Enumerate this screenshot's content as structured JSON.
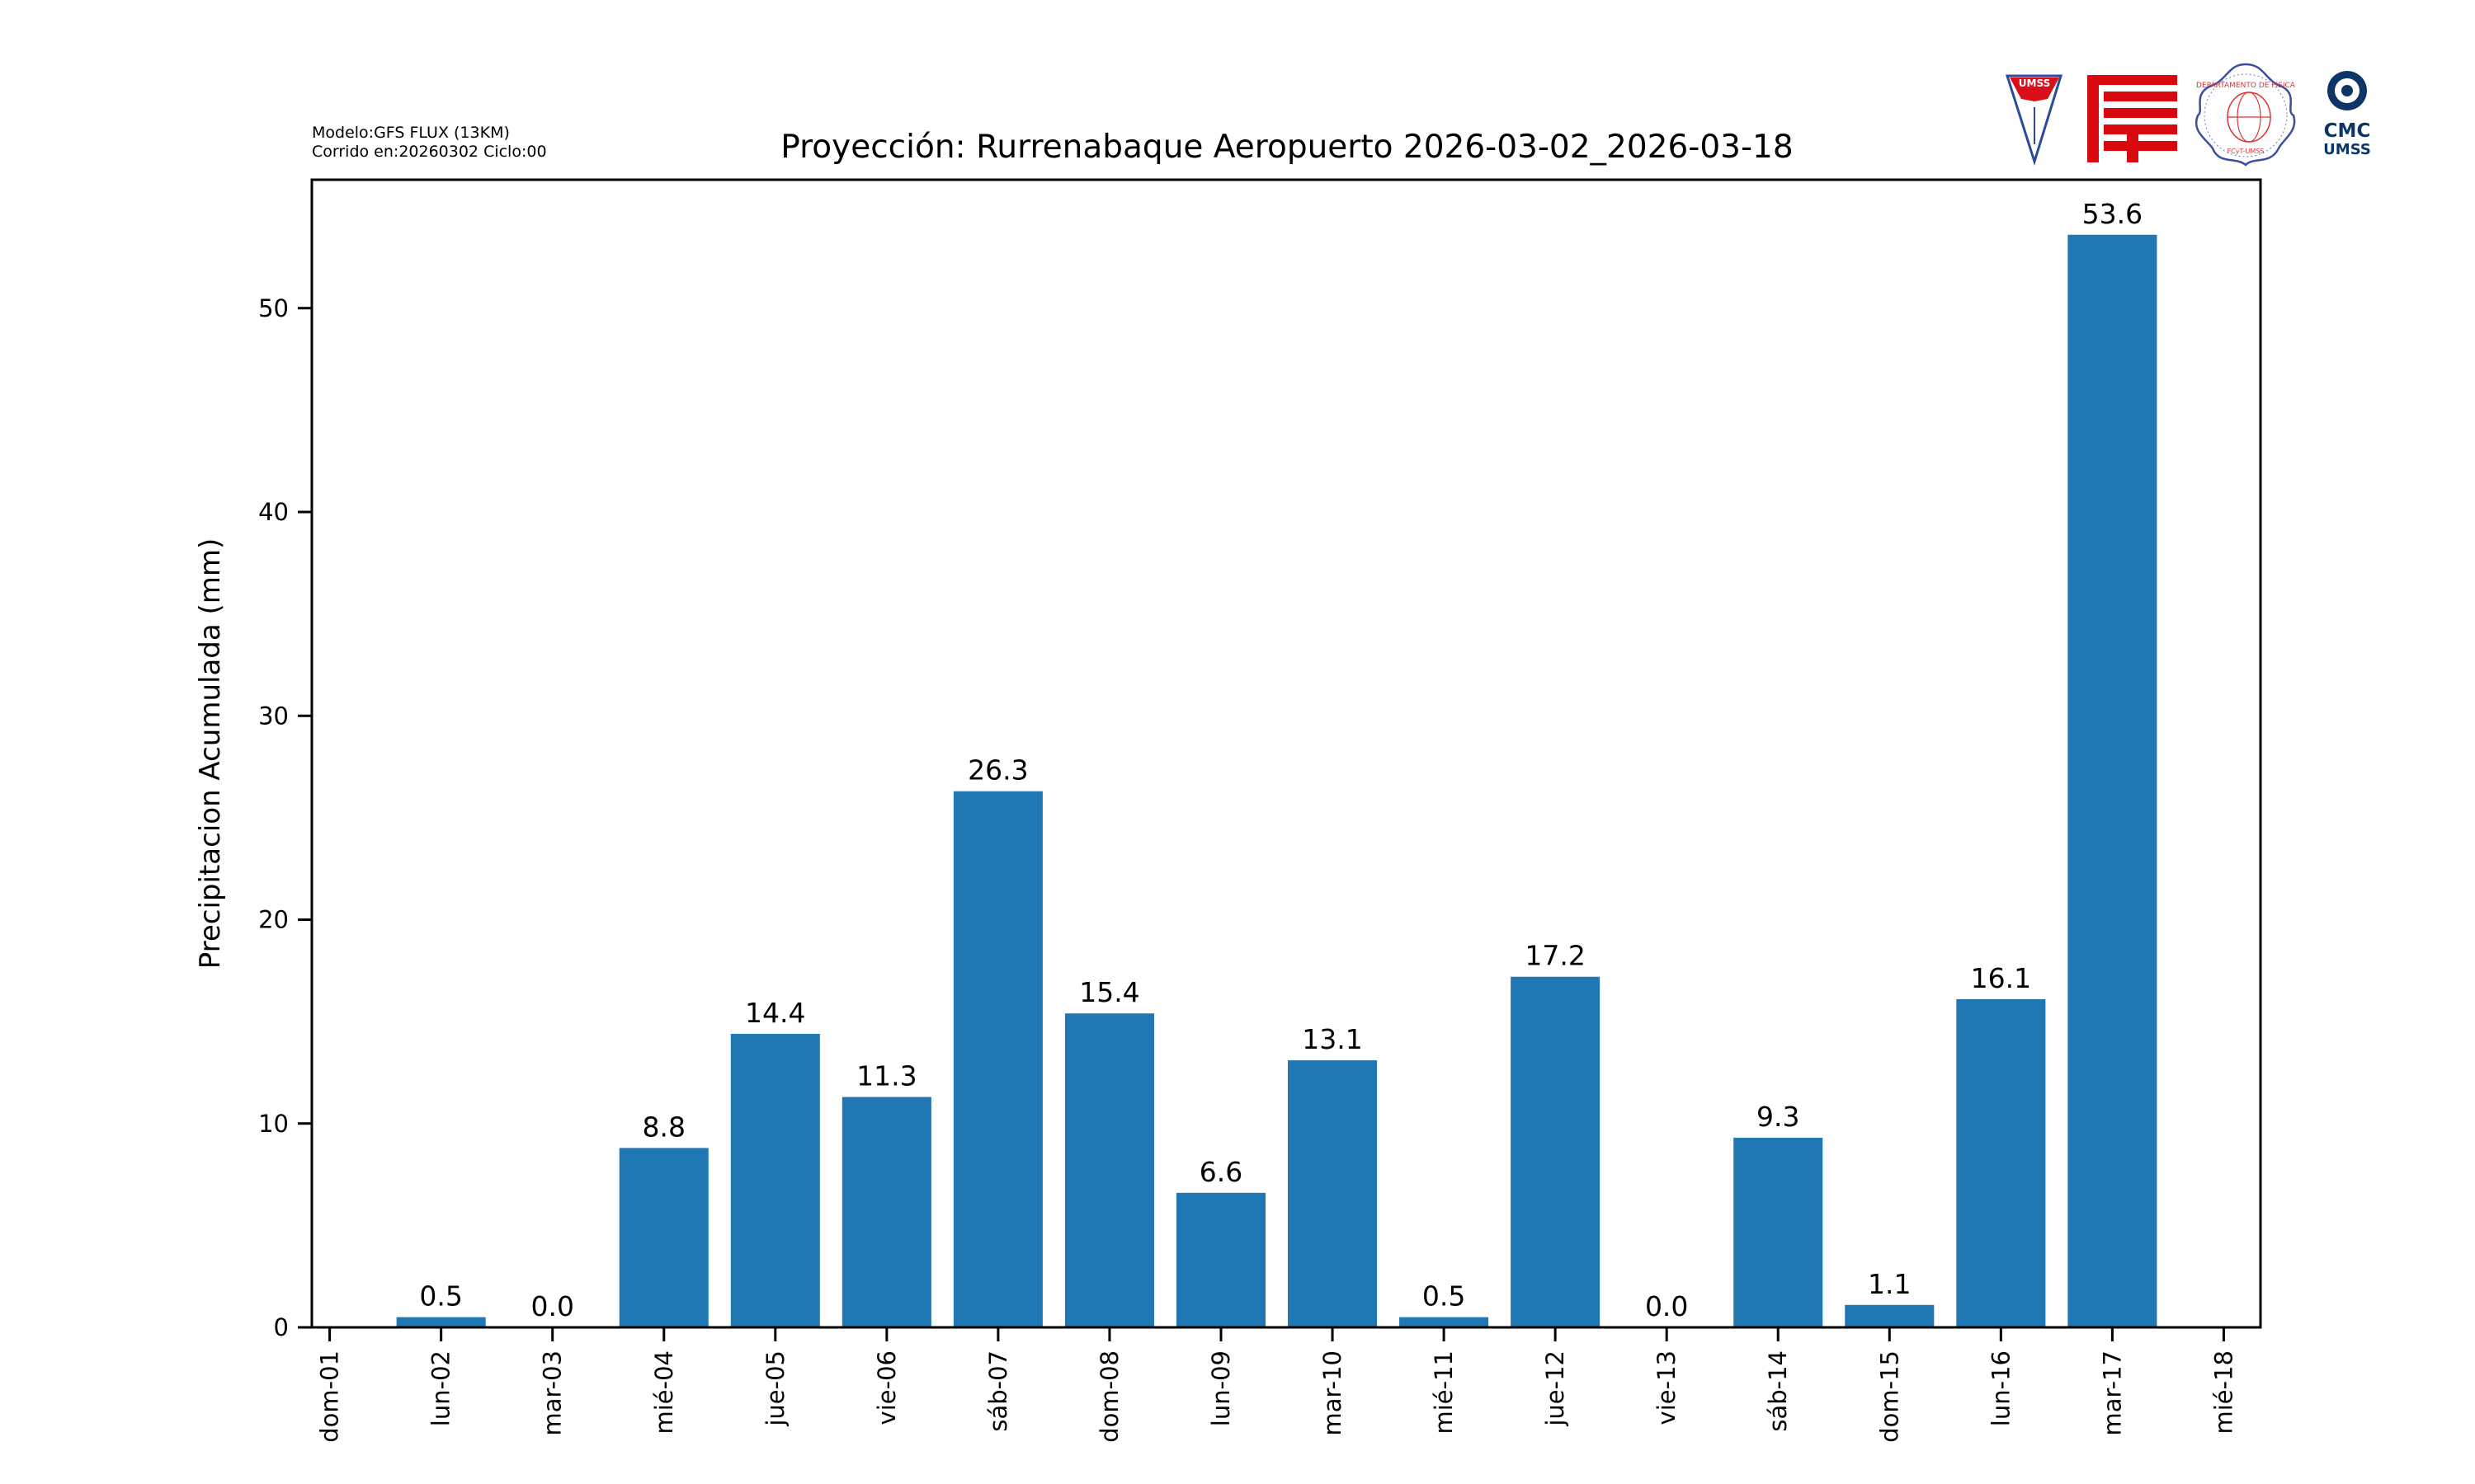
{
  "header": {
    "model_line": "Modelo:GFS FLUX (13KM)",
    "run_line": "Corrido en:20260302 Ciclo:00"
  },
  "logos": {
    "umss": "UMSS",
    "fcyt": "FCyT",
    "depto": "DEPARTAMENTO DE FÍSICA",
    "depto_sub": "FCyT-UMSS",
    "cmc_line1": "CMC",
    "cmc_line2": "UMSS"
  },
  "colors": {
    "bar": "#1f77b4",
    "axis": "#000000"
  },
  "chart_data": {
    "type": "bar",
    "title": "Proyección: Rurrenabaque Aeropuerto  2026-03-02_2026-03-18",
    "xlabel": "",
    "ylabel": "Precipitacion Acumulada (mm)",
    "categories": [
      "dom-01",
      "lun-02",
      "mar-03",
      "mié-04",
      "jue-05",
      "vie-06",
      "sáb-07",
      "dom-08",
      "lun-09",
      "mar-10",
      "mié-11",
      "jue-12",
      "vie-13",
      "sáb-14",
      "dom-15",
      "lun-16",
      "mar-17",
      "mié-18"
    ],
    "values": [
      null,
      0.5,
      0.0,
      8.8,
      14.4,
      11.3,
      26.3,
      15.4,
      6.6,
      13.1,
      0.5,
      17.2,
      0.0,
      9.3,
      1.1,
      16.1,
      53.6,
      null
    ],
    "value_labels": [
      null,
      "0.5",
      "0.0",
      "8.8",
      "14.4",
      "11.3",
      "26.3",
      "15.4",
      "6.6",
      "13.1",
      "0.5",
      "17.2",
      "0.0",
      "9.3",
      "1.1",
      "16.1",
      "53.6",
      null
    ],
    "yticks": [
      0,
      10,
      20,
      30,
      40,
      50
    ],
    "ylim": [
      0,
      56.3
    ],
    "xlim": [
      -0.16,
      17.33
    ],
    "grid": false,
    "legend": "none"
  }
}
